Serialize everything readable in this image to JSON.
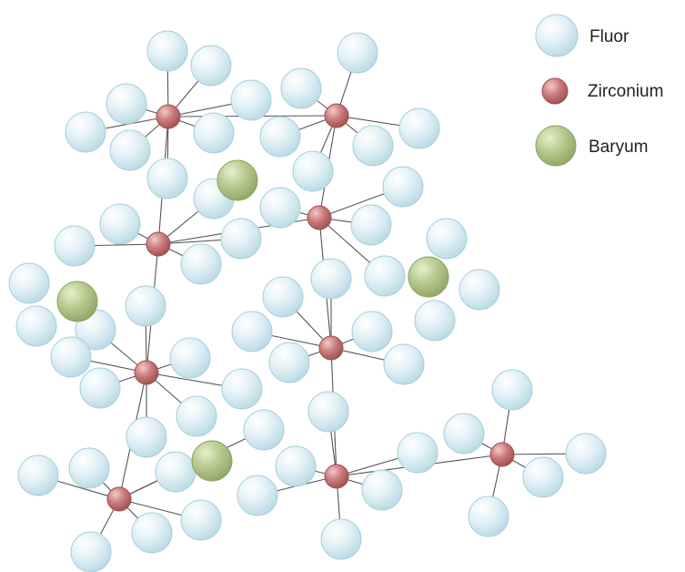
{
  "legend": {
    "fluor": "Fluor",
    "zirconium": "Zirconium",
    "baryum": "Baryum"
  },
  "colors": {
    "fluor_fill": "#cfe7ef",
    "fluor_edge": "#a9cfdc",
    "zirconium_fill": "#c97a7a",
    "zirconium_edge": "#9e4f4f",
    "baryum_fill": "#b5c98c",
    "baryum_edge": "#8fa564",
    "bond": "#555555"
  },
  "atoms": {
    "zirconium_count": 9,
    "fluor_count": 72,
    "baryum_count": 4
  }
}
